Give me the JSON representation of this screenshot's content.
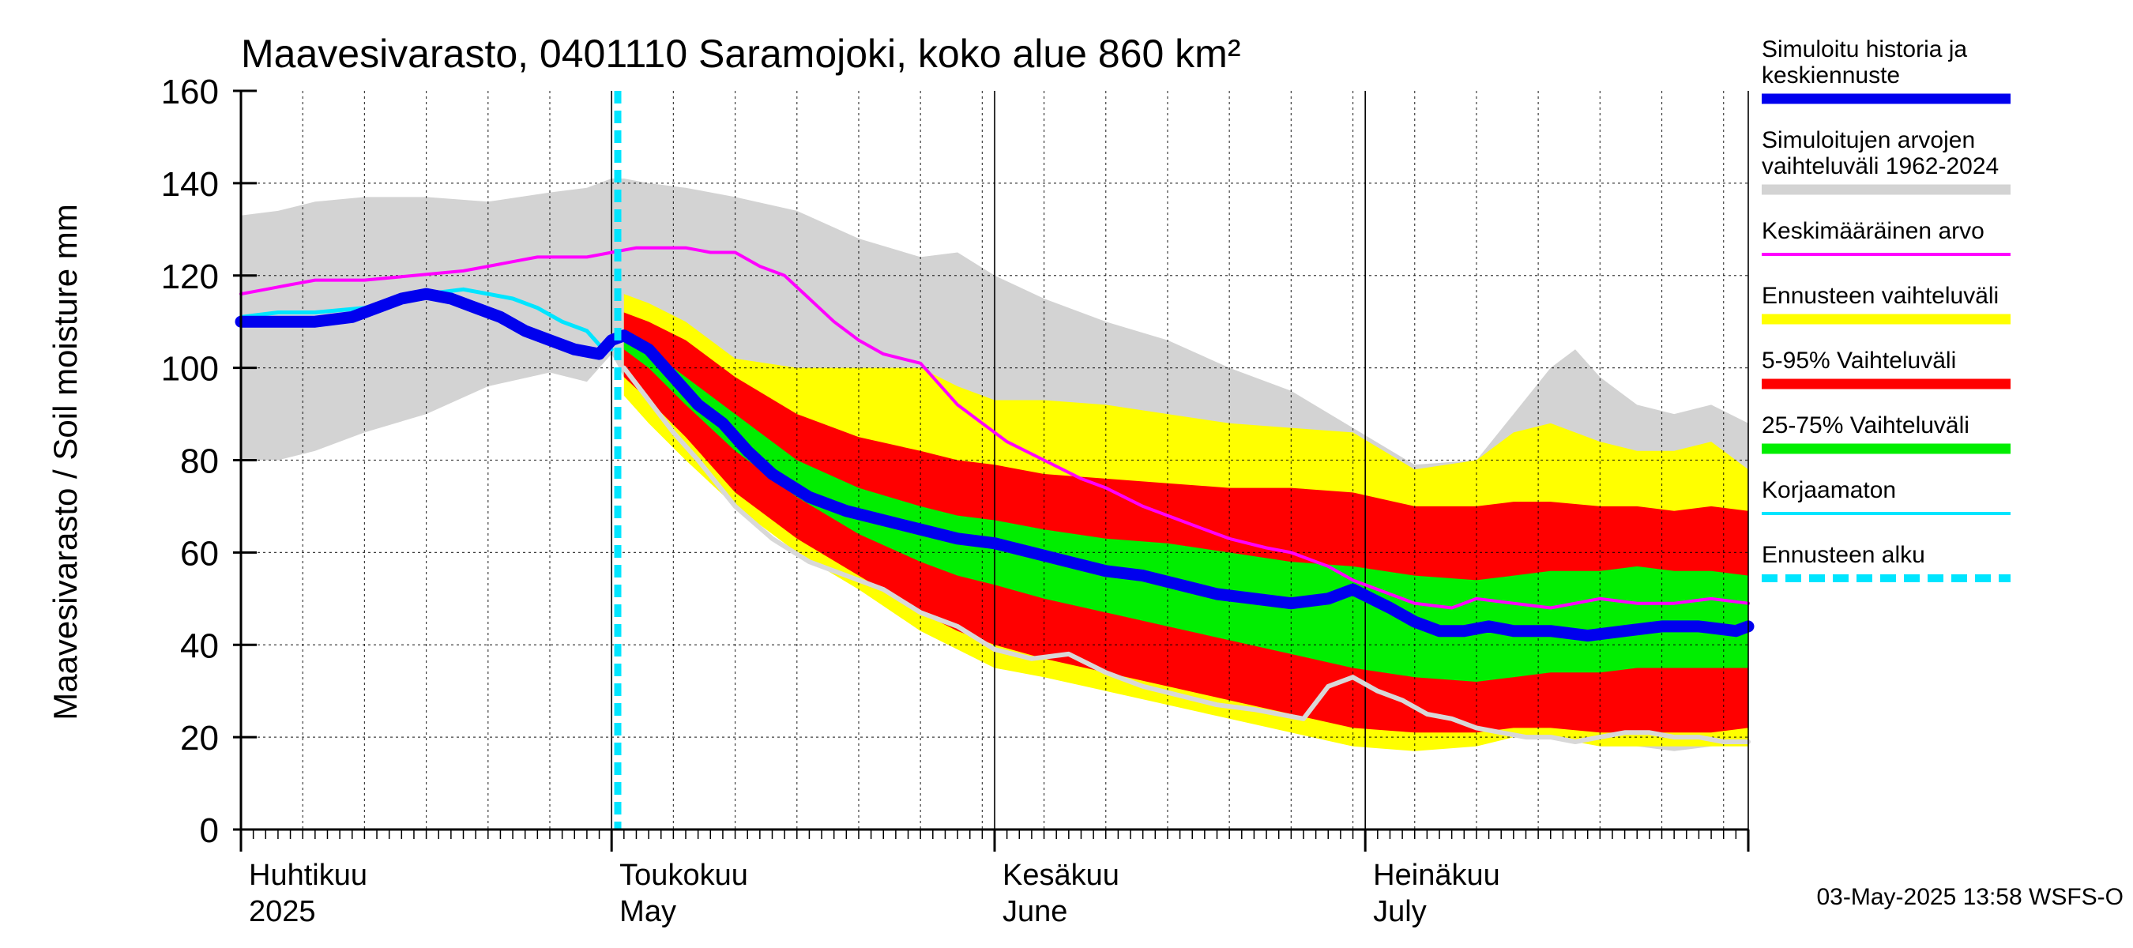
{
  "chart_data": {
    "type": "area",
    "title": "Maavesivarasto, 0401110 Saramojoki, koko alue 860 km²",
    "ylabel": "Maavesivarasto / Soil moisture   mm",
    "ylim": [
      0,
      160
    ],
    "yticks": [
      0,
      20,
      40,
      60,
      80,
      100,
      120,
      140,
      160
    ],
    "x_range_days": [
      0,
      122
    ],
    "x_start_date": "2025-04-01",
    "month_labels": [
      {
        "fi": "Huhtikuu",
        "en": "2025",
        "day": 0
      },
      {
        "fi": "Toukokuu",
        "en": "May",
        "day": 30
      },
      {
        "fi": "Kesäkuu",
        "en": "June",
        "day": 61
      },
      {
        "fi": "Heinäkuu",
        "en": "July",
        "day": 91
      }
    ],
    "month_boundaries": [
      0,
      30,
      61,
      91,
      122
    ],
    "forecast_start_day": 30.5,
    "bands": {
      "historical_range": {
        "x": [
          0,
          3,
          6,
          10,
          15,
          20,
          25,
          28,
          30,
          31,
          33,
          36,
          40,
          45,
          50,
          55,
          58,
          61,
          65,
          70,
          75,
          80,
          85,
          90,
          95,
          100,
          103,
          106,
          108,
          110,
          113,
          116,
          119,
          122
        ],
        "upper": [
          133,
          134,
          136,
          137,
          137,
          136,
          138,
          139,
          141,
          141,
          140,
          139,
          137,
          134,
          128,
          124,
          125,
          120,
          115,
          110,
          106,
          100,
          95,
          87,
          79,
          80,
          90,
          100,
          104,
          98,
          92,
          90,
          92,
          88
        ],
        "lower": [
          80,
          80,
          82,
          86,
          90,
          96,
          99,
          97,
          103,
          98,
          92,
          83,
          73,
          63,
          53,
          43,
          40,
          37,
          34,
          32,
          30,
          27,
          25,
          22,
          20,
          20,
          21,
          22,
          20,
          18,
          18,
          17,
          18,
          20
        ]
      },
      "forecast_range": {
        "x": [
          31,
          33,
          36,
          40,
          45,
          50,
          55,
          58,
          61,
          65,
          70,
          75,
          80,
          85,
          90,
          95,
          100,
          103,
          106,
          110,
          113,
          116,
          119,
          122
        ],
        "upper": [
          116,
          114,
          110,
          102,
          100,
          100,
          100,
          96,
          93,
          93,
          92,
          90,
          88,
          87,
          86,
          78,
          80,
          86,
          88,
          84,
          82,
          82,
          84,
          78
        ],
        "lower": [
          94,
          88,
          80,
          70,
          60,
          52,
          43,
          39,
          35,
          33,
          30,
          27,
          24,
          21,
          18,
          17,
          18,
          20,
          20,
          18,
          18,
          18,
          18,
          18
        ]
      },
      "p5_95": {
        "x": [
          31,
          33,
          36,
          40,
          45,
          50,
          55,
          58,
          61,
          65,
          70,
          75,
          80,
          85,
          90,
          95,
          100,
          103,
          106,
          110,
          113,
          116,
          119,
          122
        ],
        "upper": [
          112,
          110,
          106,
          98,
          90,
          85,
          82,
          80,
          79,
          77,
          76,
          75,
          74,
          74,
          73,
          70,
          70,
          71,
          71,
          70,
          70,
          69,
          70,
          69
        ],
        "lower": [
          98,
          93,
          85,
          73,
          63,
          55,
          47,
          43,
          40,
          37,
          34,
          31,
          28,
          25,
          22,
          21,
          21,
          22,
          22,
          21,
          21,
          21,
          21,
          22
        ]
      },
      "p25_75": {
        "x": [
          31,
          33,
          36,
          40,
          45,
          50,
          55,
          58,
          61,
          65,
          70,
          75,
          80,
          85,
          90,
          95,
          100,
          103,
          106,
          110,
          113,
          116,
          119,
          122
        ],
        "upper": [
          107,
          104,
          98,
          90,
          80,
          74,
          70,
          68,
          67,
          65,
          63,
          62,
          60,
          58,
          57,
          55,
          54,
          55,
          56,
          56,
          57,
          56,
          56,
          55
        ],
        "lower": [
          104,
          100,
          92,
          82,
          72,
          64,
          58,
          55,
          53,
          50,
          47,
          44,
          41,
          38,
          35,
          33,
          32,
          33,
          34,
          34,
          35,
          35,
          35,
          35
        ]
      }
    },
    "series": [
      {
        "name": "Keskimääräinen arvo",
        "color": "#ff00ff",
        "x": [
          0,
          2,
          4,
          6,
          10,
          14,
          18,
          20,
          22,
          24,
          26,
          28,
          30,
          32,
          34,
          36,
          38,
          40,
          42,
          44,
          46,
          48,
          50,
          52,
          55,
          58,
          60,
          62,
          65,
          68,
          70,
          73,
          76,
          80,
          83,
          85,
          88,
          90,
          93,
          95,
          98,
          100,
          103,
          106,
          110,
          113,
          116,
          119,
          122
        ],
        "y": [
          116,
          117,
          118,
          119,
          119,
          120,
          121,
          122,
          123,
          124,
          124,
          124,
          125,
          126,
          126,
          126,
          125,
          125,
          122,
          120,
          115,
          110,
          106,
          103,
          101,
          92,
          88,
          84,
          80,
          76,
          74,
          70,
          67,
          63,
          61,
          60,
          57,
          54,
          51,
          49,
          48,
          50,
          49,
          48,
          50,
          49,
          49,
          50,
          49
        ]
      },
      {
        "name": "Korjaamaton",
        "color": "#00e5ff",
        "x": [
          0,
          3,
          6,
          10,
          13,
          15,
          18,
          20,
          22,
          24,
          26,
          28,
          29,
          30
        ],
        "y": [
          111,
          112,
          112,
          113,
          115,
          116,
          117,
          116,
          115,
          113,
          110,
          108,
          105,
          104
        ]
      },
      {
        "name": "Simuloitu historia ja keskiennuste",
        "color": "#0000ee",
        "x": [
          0,
          3,
          6,
          9,
          11,
          13,
          15,
          17,
          19,
          21,
          23,
          25,
          27,
          29,
          30,
          31,
          33,
          35,
          37,
          39,
          41,
          43,
          46,
          49,
          52,
          55,
          58,
          61,
          64,
          67,
          70,
          73,
          76,
          79,
          82,
          85,
          88,
          90,
          93,
          95,
          97,
          99,
          101,
          103,
          106,
          109,
          112,
          115,
          118,
          121,
          122
        ],
        "y": [
          110,
          110,
          110,
          111,
          113,
          115,
          116,
          115,
          113,
          111,
          108,
          106,
          104,
          103,
          106,
          107,
          104,
          98,
          92,
          88,
          82,
          77,
          72,
          69,
          67,
          65,
          63,
          62,
          60,
          58,
          56,
          55,
          53,
          51,
          50,
          49,
          50,
          52,
          48,
          45,
          43,
          43,
          44,
          43,
          43,
          42,
          43,
          44,
          44,
          43,
          44
        ]
      },
      {
        "name": "Historical year trace",
        "color": "#d8d8d8",
        "x": [
          31,
          33,
          35,
          37,
          40,
          43,
          46,
          49,
          52,
          55,
          58,
          61,
          64,
          67,
          70,
          73,
          76,
          79,
          82,
          84,
          86,
          88,
          90,
          92,
          94,
          96,
          98,
          100,
          102,
          104,
          106,
          108,
          110,
          112,
          114,
          116,
          118,
          120,
          122
        ],
        "y": [
          100,
          93,
          86,
          80,
          70,
          63,
          58,
          55,
          52,
          47,
          44,
          39,
          37,
          38,
          34,
          31,
          29,
          27,
          26,
          25,
          24,
          31,
          33,
          30,
          28,
          25,
          24,
          22,
          21,
          20,
          20,
          19,
          20,
          21,
          21,
          20,
          20,
          19,
          19
        ]
      }
    ],
    "legend": [
      {
        "label": "Simuloitu historia ja keskiennuste",
        "lines": [
          "Simuloitu historia ja",
          "keskiennuste"
        ],
        "color": "#0000ee",
        "style": "thick"
      },
      {
        "label": "Simuloitujen arvojen vaihteluväli 1962-2024",
        "lines": [
          "Simuloitujen arvojen",
          "vaihteluväli 1962-2024"
        ],
        "color": "#d3d3d3",
        "style": "thick"
      },
      {
        "label": "Keskimääräinen arvo",
        "lines": [
          "Keskimääräinen arvo"
        ],
        "color": "#ff00ff",
        "style": "thin"
      },
      {
        "label": "Ennusteen vaihteluväli",
        "lines": [
          "Ennusteen vaihteluväli"
        ],
        "color": "#ffff00",
        "style": "thick"
      },
      {
        "label": "5-95% Vaihteluväli",
        "lines": [
          "5-95% Vaihteluväli"
        ],
        "color": "#ff0000",
        "style": "thick"
      },
      {
        "label": "25-75% Vaihteluväli",
        "lines": [
          "25-75% Vaihteluväli"
        ],
        "color": "#00ee00",
        "style": "thick"
      },
      {
        "label": "Korjaamaton",
        "lines": [
          "Korjaamaton"
        ],
        "color": "#00e5ff",
        "style": "thin"
      },
      {
        "label": "Ennusteen alku",
        "lines": [
          "Ennusteen alku"
        ],
        "color": "#00e5ff",
        "style": "dashed"
      }
    ],
    "footer": "03-May-2025 13:58 WSFS-O"
  }
}
